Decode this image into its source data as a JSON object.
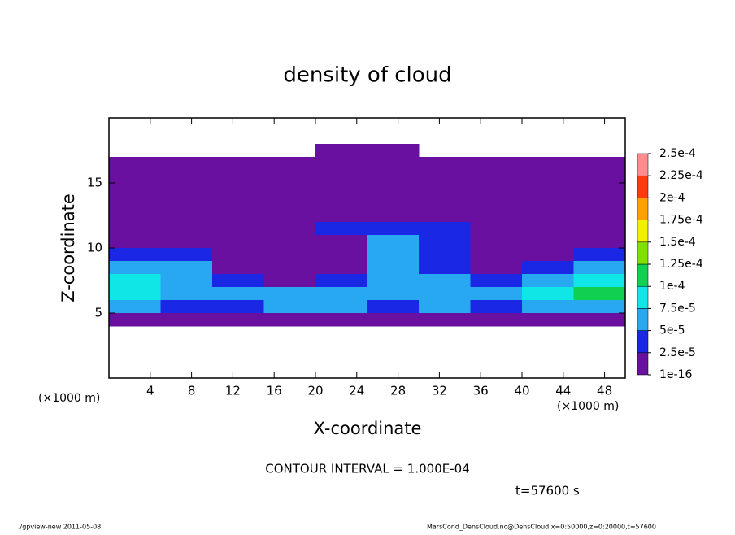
{
  "chart_data": {
    "type": "contour",
    "title": "density of cloud",
    "x_label": "X-coordinate",
    "y_label": "Z-coordinate",
    "x_unit_left": "(×1000 m)",
    "x_unit_right": "(×1000 m)",
    "contour_note": "CONTOUR INTERVAL = 1.000E-04",
    "time_note": "t=57600 s",
    "footer_left": "./gpview-new   2011-05-08",
    "footer_right": "MarsCond_DensCloud.nc@DensCloud,x=0:50000,z=0:20000,t=57600",
    "xlim": [
      0,
      50
    ],
    "ylim": [
      0,
      20
    ],
    "xticks": [
      4,
      8,
      12,
      16,
      20,
      24,
      28,
      32,
      36,
      40,
      44,
      48
    ],
    "yticks": [
      5,
      10,
      15
    ],
    "x": [
      2.5,
      7.5,
      12.5,
      17.5,
      22.5,
      27.5,
      32.5,
      37.5,
      42.5,
      47.5
    ],
    "z": [
      17.5,
      16.5,
      15.5,
      14.5,
      13.5,
      12.5,
      11.5,
      10.5,
      9.5,
      8.5,
      7.5,
      6.5,
      5.5,
      4.5
    ],
    "values": [
      [
        0,
        0,
        0,
        0,
        1e-05,
        1e-05,
        0,
        0,
        0,
        0
      ],
      [
        1e-05,
        1e-05,
        1e-05,
        1e-05,
        1e-05,
        1e-05,
        1e-05,
        1e-05,
        1e-05,
        1e-05
      ],
      [
        1e-05,
        1e-05,
        1e-05,
        1e-05,
        1e-05,
        1e-05,
        1e-05,
        1e-05,
        1e-05,
        1e-05
      ],
      [
        1e-05,
        1e-05,
        1e-05,
        1e-05,
        1e-05,
        1e-05,
        1e-05,
        1e-05,
        1e-05,
        1e-05
      ],
      [
        1e-05,
        1e-05,
        1e-05,
        1e-05,
        1e-05,
        1e-05,
        1e-05,
        1e-05,
        1e-05,
        1e-05
      ],
      [
        1e-05,
        1e-05,
        1e-05,
        1e-05,
        1e-05,
        1e-05,
        1e-05,
        1e-05,
        1e-05,
        1e-05
      ],
      [
        1e-05,
        1e-05,
        1e-05,
        1e-05,
        3e-05,
        4e-05,
        3e-05,
        1e-05,
        1e-05,
        1e-05
      ],
      [
        1e-05,
        1e-05,
        1e-05,
        1e-05,
        2e-05,
        6e-05,
        4e-05,
        1e-05,
        1e-05,
        1e-05
      ],
      [
        3e-05,
        3e-05,
        1e-05,
        1e-05,
        1e-05,
        6e-05,
        3e-05,
        1e-05,
        1e-05,
        3e-05
      ],
      [
        6e-05,
        5e-05,
        2e-05,
        1e-05,
        1e-05,
        7e-05,
        3e-05,
        1e-05,
        3e-05,
        6e-05
      ],
      [
        8e-05,
        7e-05,
        4e-05,
        2e-05,
        3e-05,
        7e-05,
        5e-05,
        3e-05,
        7e-05,
        9e-05
      ],
      [
        9e-05,
        7e-05,
        6e-05,
        5e-05,
        6e-05,
        6e-05,
        6e-05,
        5e-05,
        8e-05,
        0.000105
      ],
      [
        6e-05,
        4e-05,
        3e-05,
        5e-05,
        5e-05,
        3e-05,
        5e-05,
        3e-05,
        5e-05,
        6e-05
      ],
      [
        1e-05,
        1e-05,
        1e-05,
        1e-05,
        1e-05,
        1e-05,
        1e-05,
        1e-05,
        1e-05,
        1e-05
      ]
    ],
    "colorbar": {
      "levels": [
        {
          "value": 1e-16,
          "label": "1e-16"
        },
        {
          "value": 2.5e-05,
          "label": "2.5e-5"
        },
        {
          "value": 5e-05,
          "label": "5e-5"
        },
        {
          "value": 7.5e-05,
          "label": "7.5e-5"
        },
        {
          "value": 0.0001,
          "label": "1e-4"
        },
        {
          "value": 0.000125,
          "label": "1.25e-4"
        },
        {
          "value": 0.00015,
          "label": "1.5e-4"
        },
        {
          "value": 0.000175,
          "label": "1.75e-4"
        },
        {
          "value": 0.0002,
          "label": "2e-4"
        },
        {
          "value": 0.000225,
          "label": "2.25e-4"
        },
        {
          "value": 0.00025,
          "label": "2.5e-4"
        }
      ],
      "colors": [
        "#6a10a0",
        "#1a28e6",
        "#28a8f0",
        "#10e6e6",
        "#10d050",
        "#80e000",
        "#f0f000",
        "#ffa000",
        "#ff3a10",
        "#ff8c8c"
      ]
    }
  }
}
